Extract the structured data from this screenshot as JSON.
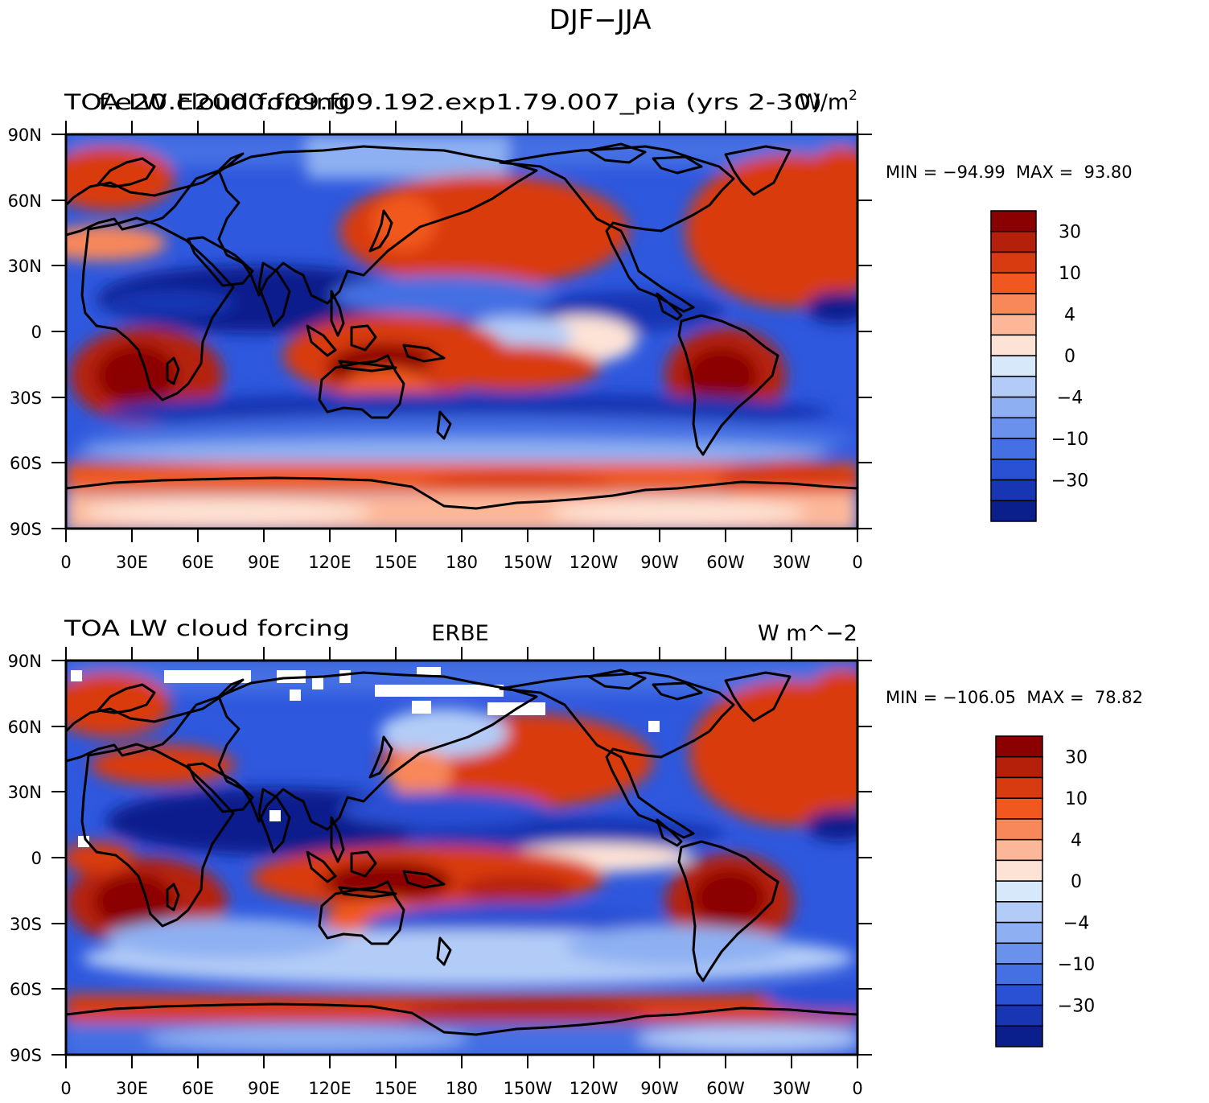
{
  "page_title": "DJF−JJA",
  "map_labels": {
    "lat_ticks": [
      "90N",
      "60N",
      "30N",
      "0",
      "30S",
      "60S",
      "90S"
    ],
    "lon_ticks": [
      "0",
      "30E",
      "60E",
      "90E",
      "120E",
      "150E",
      "180",
      "150W",
      "120W",
      "90W",
      "60W",
      "30W",
      "0"
    ]
  },
  "panels": [
    {
      "id": "model",
      "left_title": "TOA LW cloud forcing",
      "center_title": "f.e20.E2000.f09.f09.192.exp1.79.007_pia (yrs 2-30)",
      "right_title": "W/m",
      "right_title_sup": "2",
      "stats": "MIN = −94.99  MAX =  93.80",
      "colorbar": {
        "labels": [
          "30",
          "10",
          "4",
          "0",
          "−4",
          "−10",
          "−30"
        ],
        "colors": [
          "#8b0000",
          "#b5200a",
          "#d93b10",
          "#f1581f",
          "#f8875a",
          "#fcb799",
          "#fde3d6",
          "#d7e8fb",
          "#b3ccf7",
          "#8eb0f2",
          "#6a92ec",
          "#4470e3",
          "#2a50d4",
          "#1836b4",
          "#0b1f8c"
        ]
      }
    },
    {
      "id": "obs",
      "left_title": "TOA LW cloud forcing",
      "center_title": "ERBE",
      "right_title": "W m^−2",
      "stats": "MIN = −106.05  MAX =  78.82",
      "colorbar": {
        "labels": [
          "30",
          "10",
          "4",
          "0",
          "−4",
          "−10",
          "−30"
        ],
        "colors": [
          "#8b0000",
          "#b5200a",
          "#d93b10",
          "#f1581f",
          "#f8875a",
          "#fcb799",
          "#fde3d6",
          "#d7e8fb",
          "#b3ccf7",
          "#8eb0f2",
          "#6a92ec",
          "#4470e3",
          "#2a50d4",
          "#1836b4",
          "#0b1f8c"
        ]
      }
    }
  ]
}
